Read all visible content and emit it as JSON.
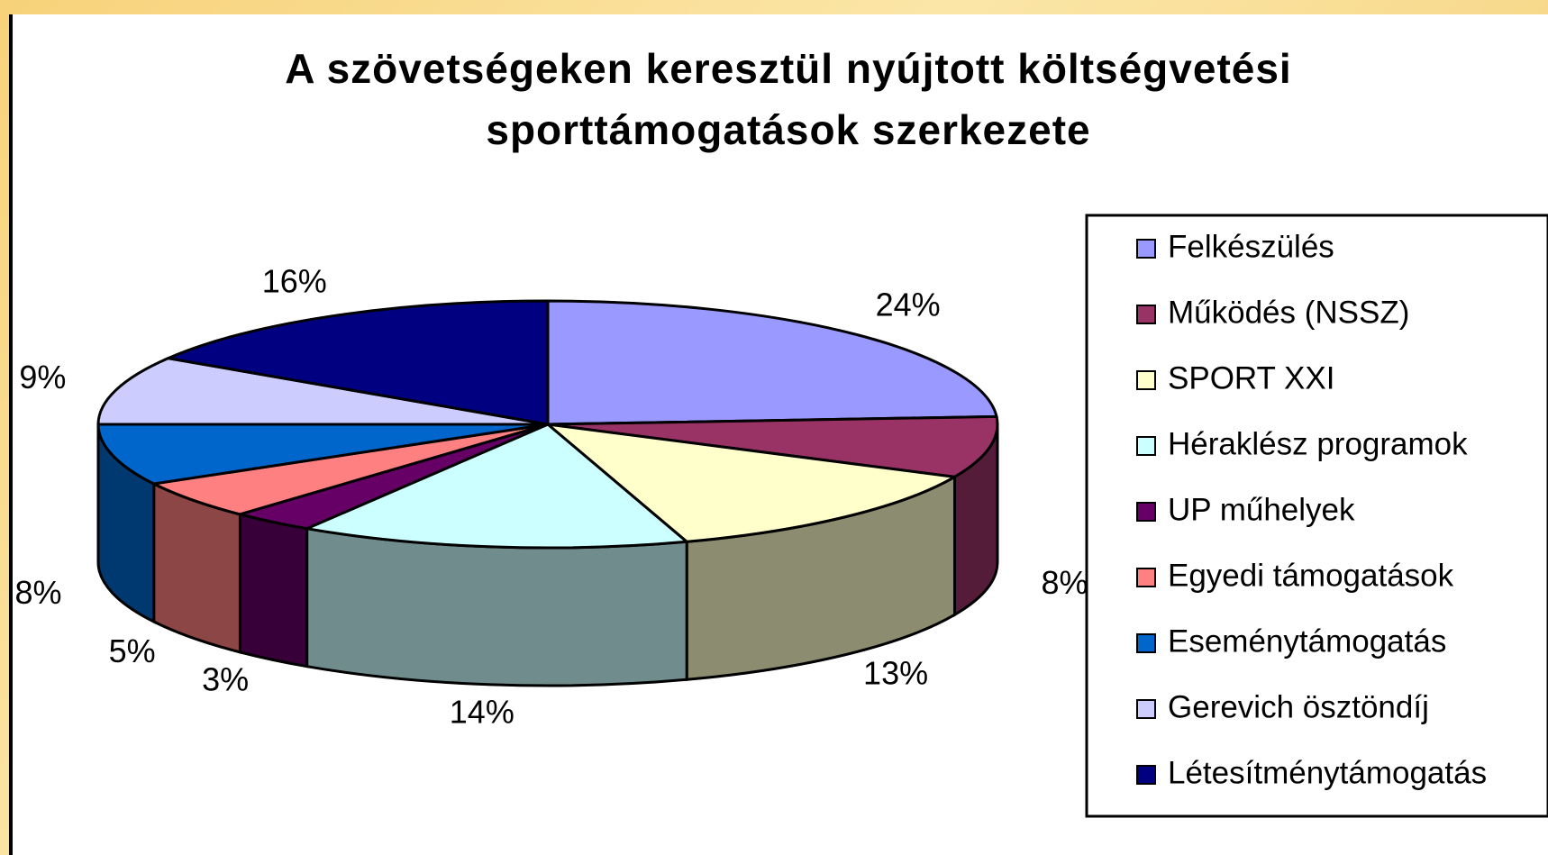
{
  "chart_data": {
    "type": "pie3d",
    "title": [
      "A szövetségeken keresztül nyújtott költségvetési",
      "sporttámogatások szerkezete"
    ],
    "categories": [
      "Felkészülés",
      "Működés (NSSZ)",
      "SPORT XXI",
      "Héraklész programok",
      "UP műhelyek",
      "Egyedi támogatások",
      "Eseménytámogatás",
      "Gerevich ösztöndíj",
      "Létesítménytámogatás"
    ],
    "values": [
      24,
      8,
      13,
      14,
      3,
      5,
      8,
      9,
      16
    ],
    "value_labels": [
      "24%",
      "8%",
      "13%",
      "14%",
      "3%",
      "5%",
      "8%",
      "9%",
      "16%"
    ],
    "colors": [
      "#9999ff",
      "#993366",
      "#ffffcc",
      "#ccffff",
      "#660066",
      "#ff8080",
      "#0066cc",
      "#ccccff",
      "#000080"
    ],
    "legend": "right"
  }
}
